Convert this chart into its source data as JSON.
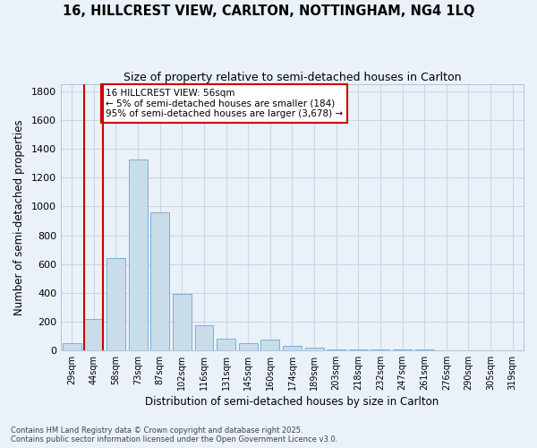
{
  "title": "16, HILLCREST VIEW, CARLTON, NOTTINGHAM, NG4 1LQ",
  "subtitle": "Size of property relative to semi-detached houses in Carlton",
  "xlabel": "Distribution of semi-detached houses by size in Carlton",
  "ylabel": "Number of semi-detached properties",
  "categories": [
    "29sqm",
    "44sqm",
    "58sqm",
    "73sqm",
    "87sqm",
    "102sqm",
    "116sqm",
    "131sqm",
    "145sqm",
    "160sqm",
    "174sqm",
    "189sqm",
    "203sqm",
    "218sqm",
    "232sqm",
    "247sqm",
    "261sqm",
    "276sqm",
    "290sqm",
    "305sqm",
    "319sqm"
  ],
  "values": [
    50,
    220,
    640,
    1330,
    960,
    390,
    175,
    80,
    50,
    75,
    30,
    15,
    8,
    5,
    5,
    3,
    2,
    1,
    1,
    1,
    0
  ],
  "bar_color": "#c9dcea",
  "bar_edge_color": "#7bafd4",
  "grid_color": "#c8d8e8",
  "background_color": "#eaf1f8",
  "annotation_text": "16 HILLCREST VIEW: 56sqm\n← 5% of semi-detached houses are smaller (184)\n95% of semi-detached houses are larger (3,678) →",
  "annotation_bar_index": 1,
  "property_bar_color": "#cc0000",
  "ylim": [
    0,
    1850
  ],
  "yticks": [
    0,
    200,
    400,
    600,
    800,
    1000,
    1200,
    1400,
    1600,
    1800
  ],
  "footer_line1": "Contains HM Land Registry data © Crown copyright and database right 2025.",
  "footer_line2": "Contains public sector information licensed under the Open Government Licence v3.0."
}
